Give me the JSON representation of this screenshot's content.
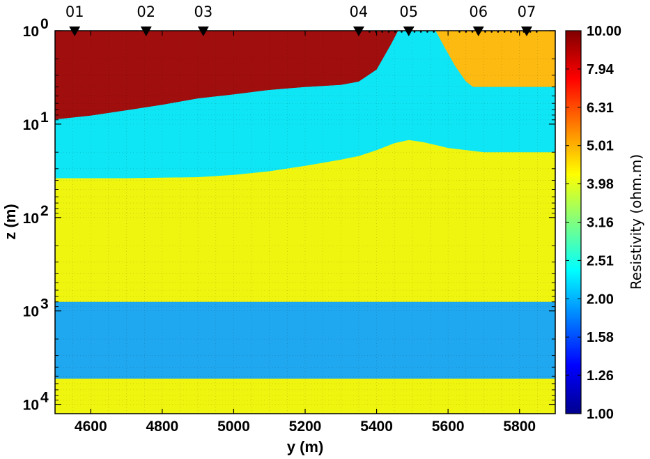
{
  "chart_data": {
    "type": "heatmap",
    "xlabel": "y (m)",
    "ylabel": "z (m)",
    "xlim": [
      4500,
      5900
    ],
    "ylim_log10": [
      0,
      4.1
    ],
    "y_scale": "log",
    "y_direction": "down",
    "xticks": [
      4600,
      4800,
      5000,
      5200,
      5400,
      5600,
      5800
    ],
    "xtick_labels": [
      "4600",
      "4800",
      "5000",
      "5200",
      "5400",
      "5600",
      "5800"
    ],
    "yticks": [
      {
        "base": "10",
        "exp": "0"
      },
      {
        "base": "10",
        "exp": "1"
      },
      {
        "base": "10",
        "exp": "2"
      },
      {
        "base": "10",
        "exp": "3"
      },
      {
        "base": "10",
        "exp": "4"
      }
    ],
    "grid": true,
    "stations": [
      {
        "label": "01",
        "y": 4555
      },
      {
        "label": "02",
        "y": 4755
      },
      {
        "label": "03",
        "y": 4915
      },
      {
        "label": "04",
        "y": 5350
      },
      {
        "label": "05",
        "y": 5490
      },
      {
        "label": "06",
        "y": 5685
      },
      {
        "label": "07",
        "y": 5820
      }
    ],
    "colorbar": {
      "title": "Resistivity (ohm.m)",
      "scale": "log",
      "range": [
        1.0,
        10.0
      ],
      "ticks": [
        "10.00",
        "7.94",
        "6.31",
        "5.01",
        "3.98",
        "3.16",
        "2.51",
        "2.00",
        "1.58",
        "1.26",
        "1.00"
      ]
    },
    "layers": [
      {
        "name": "top-conductive-zone",
        "color": "#a00e0e",
        "resistivity": 10.0,
        "bottom_depth": [
          [
            4500,
            8.9
          ],
          [
            4600,
            8.1
          ],
          [
            4700,
            7.1
          ],
          [
            4800,
            6.2
          ],
          [
            4900,
            5.3
          ],
          [
            5000,
            4.8
          ],
          [
            5100,
            4.3
          ],
          [
            5200,
            4.0
          ],
          [
            5300,
            3.8
          ],
          [
            5350,
            3.5
          ],
          [
            5400,
            2.6
          ],
          [
            5440,
            1.4
          ],
          [
            5460,
            1.0
          ]
        ]
      },
      {
        "name": "top-right-zone",
        "color": "#fdba10",
        "resistivity": 5.62,
        "polygon": [
          [
            5565,
            1.0
          ],
          [
            5590,
            1.5
          ],
          [
            5620,
            2.4
          ],
          [
            5650,
            3.5
          ],
          [
            5670,
            4.0
          ],
          [
            5900,
            4.0
          ],
          [
            5900,
            1.0
          ]
        ]
      },
      {
        "name": "upper-layer",
        "color": "#0fe6f5",
        "resistivity": 2.51,
        "bottom_depth": [
          [
            4500,
            38
          ],
          [
            4700,
            38
          ],
          [
            4900,
            37
          ],
          [
            5000,
            35
          ],
          [
            5100,
            32
          ],
          [
            5200,
            28
          ],
          [
            5300,
            24
          ],
          [
            5350,
            22
          ],
          [
            5400,
            19
          ],
          [
            5450,
            16
          ],
          [
            5490,
            14.8
          ],
          [
            5530,
            15.6
          ],
          [
            5600,
            18.0
          ],
          [
            5700,
            20.0
          ],
          [
            5900,
            20.0
          ]
        ]
      },
      {
        "name": "middle-layer",
        "color": "#f0f50f",
        "resistivity": 4.47,
        "bottom_depth": [
          [
            4500,
            800
          ],
          [
            5900,
            800
          ]
        ]
      },
      {
        "name": "deep-conductor",
        "color": "#1fa8f0",
        "resistivity": 2.24,
        "bottom_depth": [
          [
            4500,
            5300
          ],
          [
            5900,
            5300
          ]
        ]
      },
      {
        "name": "basement",
        "color": "#f0f50f",
        "resistivity": 4.47,
        "bottom_depth": [
          [
            4500,
            12600
          ],
          [
            5900,
            12600
          ]
        ]
      }
    ]
  }
}
